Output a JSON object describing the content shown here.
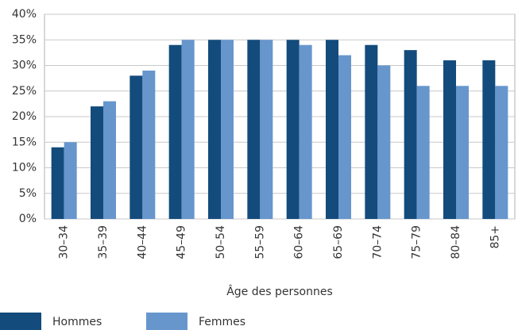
{
  "chart_data": {
    "type": "bar",
    "x_label": "Âge des personnes",
    "categories": [
      "30–34",
      "35–39",
      "40–44",
      "45–49",
      "50–54",
      "55–59",
      "60–64",
      "65–69",
      "70–74",
      "75–79",
      "80–84",
      "85+"
    ],
    "series": [
      {
        "name": "Hommes",
        "color": "#134b7c",
        "values": [
          14,
          22,
          28,
          34,
          35,
          35,
          35,
          35,
          34,
          33,
          31,
          31
        ]
      },
      {
        "name": "Femmes",
        "color": "#6796cd",
        "values": [
          15,
          23,
          29,
          35,
          35,
          35,
          34,
          32,
          30,
          26,
          26,
          26
        ]
      }
    ],
    "ylim": [
      0,
      40
    ],
    "yticks": [
      {
        "value": 0,
        "label": "0%"
      },
      {
        "value": 5,
        "label": "5%"
      },
      {
        "value": 10,
        "label": "10%"
      },
      {
        "value": 15,
        "label": "15%"
      },
      {
        "value": 20,
        "label": "20%"
      },
      {
        "value": 25,
        "label": "25%"
      },
      {
        "value": 30,
        "label": "30%"
      },
      {
        "value": 35,
        "label": "35%"
      },
      {
        "value": 40,
        "label": "40%"
      }
    ],
    "grid": true
  }
}
